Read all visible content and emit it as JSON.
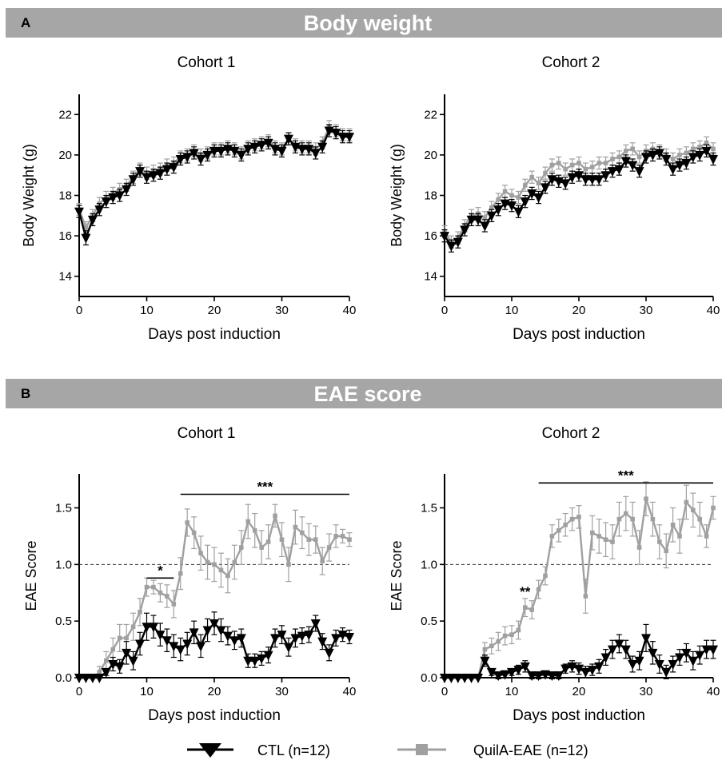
{
  "banners": [
    {
      "letter": "A",
      "title": "Body weight"
    },
    {
      "letter": "B",
      "title": "EAE score"
    }
  ],
  "legend": {
    "ctl": "CTL (n=12)",
    "quil": "QuilA-EAE (n=12)",
    "ctl_color": "#000000",
    "quil_color": "#a0a0a0"
  },
  "chart_data": [
    {
      "type": "line",
      "title": "Cohort 1",
      "xlabel": "Days post induction",
      "ylabel": "Body Weight (g)",
      "xlim": [
        0,
        40
      ],
      "ylim": [
        13,
        23
      ],
      "xticks": [
        0,
        10,
        20,
        30,
        40
      ],
      "yticks": [
        14,
        16,
        18,
        20,
        22
      ],
      "ytick_labels": [
        "14",
        "16",
        "18",
        "20",
        "22"
      ],
      "x": [
        0,
        1,
        2,
        3,
        4,
        5,
        6,
        7,
        8,
        9,
        10,
        11,
        12,
        13,
        14,
        15,
        16,
        17,
        18,
        19,
        20,
        21,
        22,
        23,
        24,
        25,
        26,
        27,
        28,
        29,
        30,
        31,
        32,
        33,
        34,
        35,
        36,
        37,
        38,
        39,
        40
      ],
      "series": [
        {
          "name": "CTL (n=12)",
          "marker": "triangle-down",
          "color": "#000000",
          "values": [
            17.2,
            15.9,
            16.8,
            17.3,
            17.7,
            17.9,
            18.0,
            18.3,
            18.8,
            19.2,
            18.9,
            19.0,
            19.1,
            19.3,
            19.4,
            19.8,
            19.9,
            20.1,
            19.8,
            20.0,
            20.2,
            20.2,
            20.3,
            20.2,
            20.0,
            20.3,
            20.4,
            20.5,
            20.6,
            20.3,
            20.2,
            20.8,
            20.4,
            20.3,
            20.3,
            20.1,
            20.4,
            21.2,
            21.1,
            20.9,
            20.9
          ],
          "errors": [
            0.3,
            0.35,
            0.3,
            0.3,
            0.3,
            0.3,
            0.3,
            0.3,
            0.3,
            0.3,
            0.3,
            0.3,
            0.3,
            0.3,
            0.3,
            0.3,
            0.3,
            0.3,
            0.3,
            0.3,
            0.3,
            0.3,
            0.3,
            0.3,
            0.3,
            0.3,
            0.3,
            0.3,
            0.3,
            0.3,
            0.3,
            0.3,
            0.3,
            0.3,
            0.3,
            0.3,
            0.3,
            0.3,
            0.3,
            0.3,
            0.3
          ]
        },
        {
          "name": "QuilA-EAE (n=12)",
          "marker": "square",
          "color": "#a0a0a0",
          "values": [
            17.3,
            16.4,
            17.0,
            17.6,
            17.9,
            18.1,
            18.3,
            18.5,
            18.9,
            19.3,
            19.1,
            19.2,
            19.3,
            19.5,
            19.6,
            19.9,
            20.0,
            20.2,
            20.0,
            20.1,
            20.3,
            20.3,
            20.4,
            20.3,
            20.1,
            20.4,
            20.5,
            20.6,
            20.7,
            20.4,
            20.3,
            20.8,
            20.5,
            20.4,
            20.4,
            20.3,
            20.6,
            21.4,
            21.2,
            21.0,
            21.0
          ],
          "errors": [
            0.3,
            0.3,
            0.3,
            0.3,
            0.3,
            0.3,
            0.3,
            0.3,
            0.3,
            0.3,
            0.3,
            0.3,
            0.3,
            0.3,
            0.3,
            0.3,
            0.3,
            0.3,
            0.3,
            0.3,
            0.3,
            0.3,
            0.3,
            0.3,
            0.3,
            0.3,
            0.3,
            0.3,
            0.3,
            0.3,
            0.3,
            0.3,
            0.3,
            0.3,
            0.3,
            0.3,
            0.3,
            0.3,
            0.3,
            0.3,
            0.3
          ]
        }
      ]
    },
    {
      "type": "line",
      "title": "Cohort 2",
      "xlabel": "Days post induction",
      "ylabel": "Body Weight (g)",
      "xlim": [
        0,
        40
      ],
      "ylim": [
        13,
        23
      ],
      "xticks": [
        0,
        10,
        20,
        30,
        40
      ],
      "yticks": [
        14,
        16,
        18,
        20,
        22
      ],
      "ytick_labels": [
        "14",
        "16",
        "18",
        "20",
        "22"
      ],
      "x": [
        0,
        1,
        2,
        3,
        4,
        5,
        6,
        7,
        8,
        9,
        10,
        11,
        12,
        13,
        14,
        15,
        16,
        17,
        18,
        19,
        20,
        21,
        22,
        23,
        24,
        25,
        26,
        27,
        28,
        29,
        30,
        31,
        32,
        33,
        34,
        35,
        36,
        37,
        38,
        39,
        40
      ],
      "series": [
        {
          "name": "CTL (n=12)",
          "marker": "triangle-down",
          "color": "#000000",
          "values": [
            16.0,
            15.5,
            15.7,
            16.3,
            16.8,
            16.8,
            16.5,
            17.0,
            17.3,
            17.6,
            17.5,
            17.2,
            17.7,
            18.1,
            17.9,
            18.4,
            18.8,
            18.7,
            18.6,
            18.9,
            19.0,
            18.8,
            18.8,
            18.8,
            19.0,
            19.2,
            19.3,
            19.7,
            19.5,
            19.2,
            19.9,
            20.0,
            20.1,
            19.8,
            19.3,
            19.5,
            19.6,
            19.9,
            20.0,
            20.2,
            19.8
          ],
          "errors": [
            0.3,
            0.3,
            0.3,
            0.3,
            0.3,
            0.3,
            0.3,
            0.3,
            0.3,
            0.3,
            0.3,
            0.3,
            0.3,
            0.3,
            0.3,
            0.3,
            0.3,
            0.3,
            0.3,
            0.3,
            0.3,
            0.3,
            0.3,
            0.3,
            0.3,
            0.3,
            0.3,
            0.3,
            0.3,
            0.3,
            0.3,
            0.3,
            0.3,
            0.3,
            0.3,
            0.3,
            0.3,
            0.3,
            0.3,
            0.3,
            0.3
          ]
        },
        {
          "name": "QuilA-EAE (n=12)",
          "marker": "square",
          "color": "#a0a0a0",
          "values": [
            16.2,
            15.7,
            15.9,
            16.5,
            17.0,
            17.1,
            16.9,
            17.4,
            17.8,
            18.2,
            18.0,
            17.9,
            18.5,
            18.9,
            18.6,
            19.1,
            19.5,
            19.6,
            19.3,
            19.5,
            19.6,
            19.3,
            19.4,
            19.6,
            19.6,
            19.8,
            19.9,
            20.2,
            20.3,
            19.9,
            20.2,
            20.3,
            20.2,
            20.0,
            19.8,
            20.0,
            20.1,
            20.3,
            20.4,
            20.6,
            20.3
          ],
          "errors": [
            0.3,
            0.3,
            0.3,
            0.3,
            0.3,
            0.3,
            0.3,
            0.3,
            0.3,
            0.3,
            0.3,
            0.3,
            0.3,
            0.3,
            0.3,
            0.3,
            0.3,
            0.3,
            0.3,
            0.3,
            0.3,
            0.3,
            0.3,
            0.3,
            0.3,
            0.3,
            0.3,
            0.3,
            0.3,
            0.3,
            0.3,
            0.3,
            0.3,
            0.3,
            0.3,
            0.3,
            0.3,
            0.3,
            0.3,
            0.3,
            0.3
          ]
        }
      ]
    },
    {
      "type": "line",
      "title": "Cohort 1",
      "xlabel": "Days post induction",
      "ylabel": "EAE Score",
      "xlim": [
        0,
        40
      ],
      "ylim": [
        0,
        1.8
      ],
      "xticks": [
        0,
        10,
        20,
        30,
        40
      ],
      "yticks": [
        0,
        0.5,
        1.0,
        1.5
      ],
      "ytick_labels": [
        "0.0",
        "0.5",
        "1.0",
        "1.5"
      ],
      "reference_line": 1.0,
      "annotations": [
        {
          "text": "*",
          "x_start": 10,
          "x_end": 14,
          "y": 0.88
        },
        {
          "text": "***",
          "x_start": 15,
          "x_end": 40,
          "y": 1.62
        }
      ],
      "x": [
        0,
        1,
        2,
        3,
        4,
        5,
        6,
        7,
        8,
        9,
        10,
        11,
        12,
        13,
        14,
        15,
        16,
        17,
        18,
        19,
        20,
        21,
        22,
        23,
        24,
        25,
        26,
        27,
        28,
        29,
        30,
        31,
        32,
        33,
        34,
        35,
        36,
        37,
        38,
        39,
        40
      ],
      "series": [
        {
          "name": "CTL (n=12)",
          "marker": "triangle-down",
          "color": "#000000",
          "values": [
            0,
            0,
            0,
            0,
            0.05,
            0.12,
            0.1,
            0.22,
            0.15,
            0.3,
            0.45,
            0.45,
            0.38,
            0.33,
            0.28,
            0.25,
            0.3,
            0.4,
            0.28,
            0.42,
            0.48,
            0.42,
            0.37,
            0.33,
            0.35,
            0.15,
            0.15,
            0.17,
            0.2,
            0.35,
            0.38,
            0.27,
            0.35,
            0.37,
            0.38,
            0.48,
            0.32,
            0.22,
            0.35,
            0.38,
            0.36
          ],
          "errors": [
            0,
            0,
            0,
            0,
            0.03,
            0.06,
            0.06,
            0.1,
            0.08,
            0.1,
            0.12,
            0.1,
            0.1,
            0.1,
            0.1,
            0.1,
            0.1,
            0.1,
            0.1,
            0.1,
            0.1,
            0.1,
            0.08,
            0.08,
            0.08,
            0.06,
            0.06,
            0.06,
            0.07,
            0.08,
            0.08,
            0.08,
            0.08,
            0.07,
            0.07,
            0.07,
            0.07,
            0.07,
            0.07,
            0.06,
            0.06
          ]
        },
        {
          "name": "QuilA-EAE (n=12)",
          "marker": "square",
          "color": "#a0a0a0",
          "values": [
            0,
            0,
            0,
            0.05,
            0.15,
            0.25,
            0.35,
            0.35,
            0.45,
            0.58,
            0.8,
            0.8,
            0.75,
            0.72,
            0.65,
            0.92,
            1.37,
            1.28,
            1.1,
            1.02,
            1.0,
            0.95,
            0.9,
            1.02,
            1.15,
            1.38,
            1.3,
            1.15,
            1.2,
            1.43,
            1.22,
            1.0,
            1.33,
            1.28,
            1.22,
            1.22,
            1.03,
            1.15,
            1.25,
            1.25,
            1.22
          ],
          "errors": [
            0,
            0,
            0,
            0.05,
            0.08,
            0.1,
            0.12,
            0.12,
            0.12,
            0.12,
            0.08,
            0.06,
            0.08,
            0.1,
            0.12,
            0.14,
            0.12,
            0.14,
            0.15,
            0.15,
            0.15,
            0.15,
            0.15,
            0.15,
            0.15,
            0.15,
            0.15,
            0.15,
            0.15,
            0.1,
            0.15,
            0.15,
            0.15,
            0.14,
            0.14,
            0.12,
            0.12,
            0.12,
            0.1,
            0.06,
            0.06
          ]
        }
      ]
    },
    {
      "type": "line",
      "title": "Cohort 2",
      "xlabel": "Days post induction",
      "ylabel": "EAE Score",
      "xlim": [
        0,
        40
      ],
      "ylim": [
        0,
        1.8
      ],
      "xticks": [
        0,
        10,
        20,
        30,
        40
      ],
      "yticks": [
        0,
        0.5,
        1.0,
        1.5
      ],
      "ytick_labels": [
        "0.0",
        "0.5",
        "1.0",
        "1.5"
      ],
      "reference_line": 1.0,
      "annotations": [
        {
          "text": "**",
          "x": 12,
          "y": 0.72
        },
        {
          "text": "***",
          "x_start": 14,
          "x_end": 40,
          "y": 1.72
        }
      ],
      "x": [
        0,
        1,
        2,
        3,
        4,
        5,
        6,
        7,
        8,
        9,
        10,
        11,
        12,
        13,
        14,
        15,
        16,
        17,
        18,
        19,
        20,
        21,
        22,
        23,
        24,
        25,
        26,
        27,
        28,
        29,
        30,
        31,
        32,
        33,
        34,
        35,
        36,
        37,
        38,
        39,
        40
      ],
      "series": [
        {
          "name": "CTL (n=12)",
          "marker": "triangle-down",
          "color": "#000000",
          "values": [
            0,
            0,
            0,
            0,
            0,
            0,
            0.15,
            0.05,
            0.02,
            0.03,
            0.05,
            0.07,
            0.1,
            0.02,
            0.02,
            0.03,
            0.02,
            0.02,
            0.08,
            0.1,
            0.08,
            0.05,
            0.07,
            0.1,
            0.18,
            0.25,
            0.3,
            0.25,
            0.12,
            0.15,
            0.35,
            0.22,
            0.12,
            0.05,
            0.12,
            0.18,
            0.22,
            0.15,
            0.2,
            0.25,
            0.25
          ],
          "errors": [
            0,
            0,
            0,
            0,
            0,
            0,
            0.05,
            0.03,
            0.03,
            0.03,
            0.03,
            0.04,
            0.05,
            0.03,
            0.03,
            0.03,
            0.03,
            0.03,
            0.04,
            0.05,
            0.05,
            0.05,
            0.05,
            0.06,
            0.07,
            0.08,
            0.08,
            0.08,
            0.07,
            0.08,
            0.12,
            0.1,
            0.08,
            0.06,
            0.07,
            0.07,
            0.08,
            0.08,
            0.08,
            0.08,
            0.08
          ]
        },
        {
          "name": "QuilA-EAE (n=12)",
          "marker": "square",
          "color": "#a0a0a0",
          "values": [
            0,
            0,
            0,
            0,
            0,
            0,
            0.25,
            0.28,
            0.32,
            0.37,
            0.38,
            0.42,
            0.62,
            0.6,
            0.78,
            0.9,
            1.25,
            1.3,
            1.35,
            1.4,
            1.42,
            0.72,
            1.28,
            1.25,
            1.22,
            1.2,
            1.4,
            1.45,
            1.4,
            1.15,
            1.58,
            1.4,
            1.2,
            1.12,
            1.35,
            1.25,
            1.55,
            1.48,
            1.4,
            1.25,
            1.5
          ],
          "errors": [
            0,
            0,
            0,
            0,
            0,
            0,
            0.06,
            0.07,
            0.08,
            0.08,
            0.08,
            0.08,
            0.08,
            0.08,
            0.08,
            0.08,
            0.1,
            0.1,
            0.1,
            0.1,
            0.1,
            0.15,
            0.15,
            0.15,
            0.15,
            0.15,
            0.15,
            0.15,
            0.15,
            0.15,
            0.15,
            0.15,
            0.15,
            0.15,
            0.15,
            0.15,
            0.15,
            0.15,
            0.15,
            0.1,
            0.1
          ]
        }
      ]
    }
  ]
}
